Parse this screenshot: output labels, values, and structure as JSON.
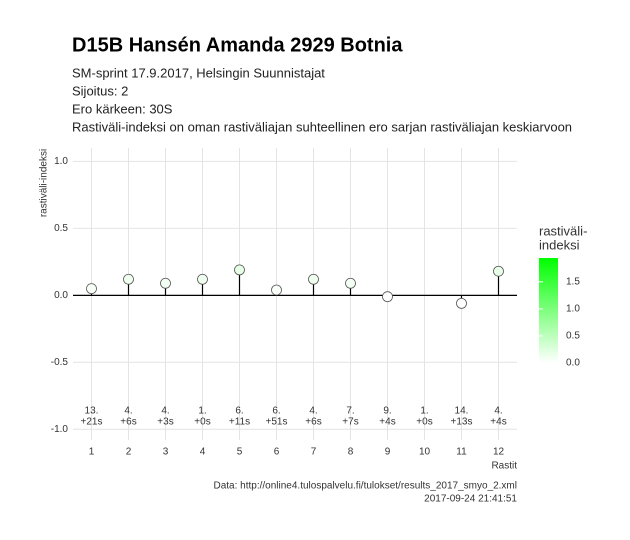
{
  "chart_data": {
    "type": "lollipop",
    "title": "D15B Hansén Amanda 2929 Botnia",
    "subtitle": [
      "SM-sprint 17.9.2017, Helsingin Suunnistajat",
      "Sijoitus: 2",
      "Ero kärkeen: 30S",
      "Rastiväli-indeksi on oman rastiväliajan suhteellinen ero sarjan rastiväliajan keskiarvoon"
    ],
    "y_label": "rastiväli-indeksi",
    "x_label": "Rastit",
    "categories": [
      "1",
      "2",
      "3",
      "4",
      "5",
      "6",
      "7",
      "8",
      "9",
      "10",
      "11",
      "12"
    ],
    "values": [
      0.05,
      0.12,
      0.09,
      0.12,
      0.19,
      0.04,
      0.12,
      0.09,
      -0.01,
      null,
      -0.06,
      0.18
    ],
    "ranks": [
      "13.",
      "4.",
      "4.",
      "1.",
      "6.",
      "6.",
      "4.",
      "7.",
      "9.",
      "1.",
      "14.",
      "4."
    ],
    "times": [
      "+21s",
      "+6s",
      "+3s",
      "+0s",
      "+11s",
      "+51s",
      "+6s",
      "+7s",
      "+4s",
      "+0s",
      "+13s",
      "+4s"
    ],
    "ylim": [
      -1.08,
      1.1
    ],
    "yticks": [
      {
        "value": -1,
        "label": "-1.0"
      },
      {
        "value": -0.5,
        "label": "-0.5"
      },
      {
        "value": 0,
        "label": "0.0"
      },
      {
        "value": 0.5,
        "label": "0.5"
      },
      {
        "value": 1,
        "label": "1.0"
      }
    ],
    "grid": true,
    "legend_title": [
      "rastiväli-",
      "indeksi"
    ],
    "legend_colors": [
      "#ffffff",
      "#00ff00"
    ],
    "legend_lim": [
      0,
      1.94
    ],
    "legend_ticks": [
      {
        "value": 0,
        "label": "0.0"
      },
      {
        "value": 0.5,
        "label": "0.5"
      },
      {
        "value": 1,
        "label": "1.0"
      },
      {
        "value": 1.5,
        "label": "1.5"
      }
    ],
    "caption": [
      "Data: http://online4.tulospalvelu.fi/tulokset/results_2017_smyo_2.xml",
      "2017-09-24 21:41:51"
    ]
  }
}
